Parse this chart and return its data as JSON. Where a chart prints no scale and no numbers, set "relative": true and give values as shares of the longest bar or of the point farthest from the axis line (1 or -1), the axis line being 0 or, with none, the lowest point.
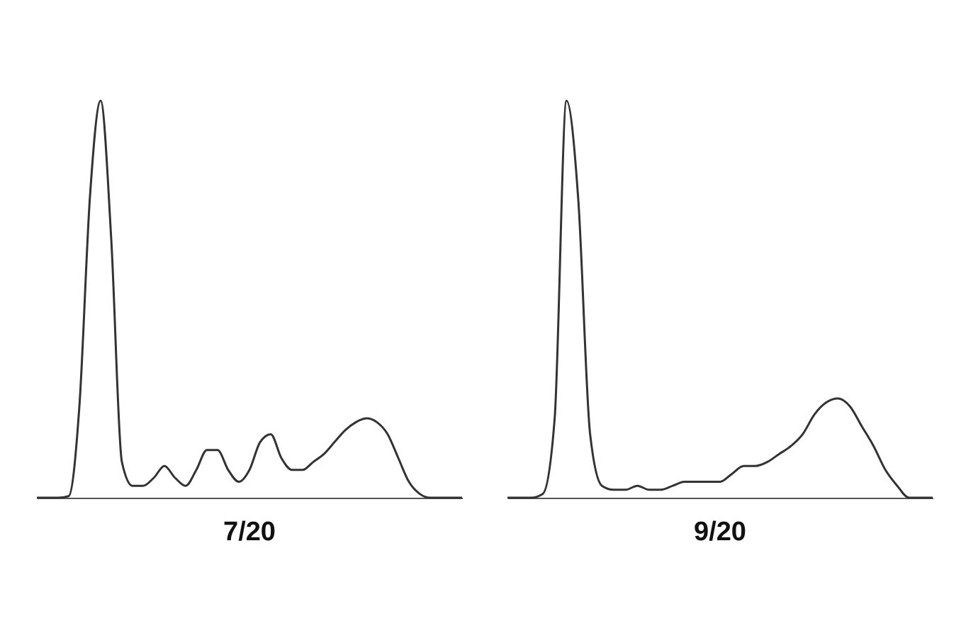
{
  "chart_data": [
    {
      "type": "line",
      "relative": true,
      "title": "7/20",
      "tick_labels": false,
      "categories": [
        null,
        null,
        null,
        null,
        null,
        null,
        null,
        null,
        null,
        null,
        null,
        null,
        null,
        null,
        null,
        null,
        null,
        null,
        null,
        null,
        null,
        null,
        null,
        null,
        null,
        null,
        null,
        null,
        null,
        null,
        null,
        null,
        null,
        null,
        null,
        null,
        null,
        null,
        null,
        null,
        null
      ],
      "series": [
        {
          "color": "#333333",
          "values": [
            0,
            0,
            0,
            0.004,
            0.23,
            0.76,
            1.0,
            0.65,
            0.09,
            0.03,
            0.03,
            0.05,
            0.08,
            0.05,
            0.03,
            0.07,
            0.12,
            0.12,
            0.07,
            0.04,
            0.07,
            0.14,
            0.16,
            0.1,
            0.07,
            0.07,
            0.09,
            0.11,
            0.14,
            0.17,
            0.19,
            0.2,
            0.19,
            0.16,
            0.1,
            0.04,
            0.01,
            0,
            0,
            0,
            0
          ]
        }
      ]
    },
    {
      "type": "line",
      "relative": true,
      "title": "9/20",
      "tick_labels": false,
      "categories": [
        null,
        null,
        null,
        null,
        null,
        null,
        null,
        null,
        null,
        null,
        null,
        null,
        null,
        null,
        null,
        null,
        null,
        null,
        null,
        null,
        null,
        null,
        null,
        null,
        null,
        null,
        null,
        null,
        null,
        null,
        null,
        null,
        null,
        null,
        null,
        null,
        null
      ],
      "series": [
        {
          "color": "#333333",
          "values": [
            0,
            0,
            0,
            0.01,
            0.2,
            1.0,
            0.75,
            0.16,
            0.03,
            0.02,
            0.02,
            0.03,
            0.02,
            0.02,
            0.03,
            0.04,
            0.04,
            0.04,
            0.04,
            0.06,
            0.08,
            0.08,
            0.09,
            0.11,
            0.13,
            0.16,
            0.21,
            0.24,
            0.25,
            0.23,
            0.18,
            0.13,
            0.07,
            0.03,
            0,
            0,
            0
          ]
        }
      ]
    }
  ]
}
